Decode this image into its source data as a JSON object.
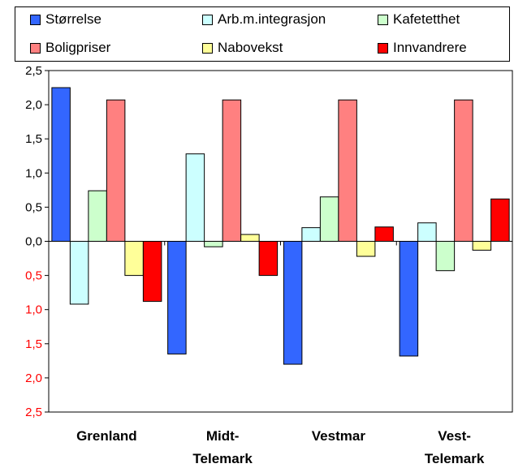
{
  "chart_data": {
    "type": "bar",
    "categories": [
      [
        "Grenland"
      ],
      [
        "Midt-",
        "Telemark"
      ],
      [
        "Vestmar"
      ],
      [
        "Vest-",
        "Telemark"
      ]
    ],
    "series": [
      {
        "name": "Størrelse",
        "color": "#3366ff",
        "values": [
          2.25,
          -1.65,
          -1.8,
          -1.68
        ]
      },
      {
        "name": "Arb.m.integrasjon",
        "color": "#ccffff",
        "values": [
          -0.92,
          1.28,
          0.2,
          0.27
        ]
      },
      {
        "name": "Kafetetthet",
        "color": "#ccffcc",
        "values": [
          0.74,
          -0.08,
          0.65,
          -0.43
        ]
      },
      {
        "name": "Boligpriser",
        "color": "#ff8080",
        "values": [
          2.07,
          2.07,
          2.07,
          2.07
        ]
      },
      {
        "name": "Nabovekst",
        "color": "#ffff99",
        "values": [
          -0.5,
          0.1,
          -0.22,
          -0.13
        ]
      },
      {
        "name": "Innvandrere",
        "color": "#ff0000",
        "values": [
          -0.88,
          -0.5,
          0.21,
          0.62
        ]
      }
    ],
    "ylim": [
      -2.5,
      2.5
    ],
    "yticks": [
      {
        "value": 2.5,
        "label": "2,5"
      },
      {
        "value": 2.0,
        "label": "2,0"
      },
      {
        "value": 1.5,
        "label": "1,5"
      },
      {
        "value": 1.0,
        "label": "1,0"
      },
      {
        "value": 0.5,
        "label": "0,5"
      },
      {
        "value": 0.0,
        "label": "0,0"
      },
      {
        "value": -0.5,
        "label": "0,5"
      },
      {
        "value": -1.0,
        "label": "1,0"
      },
      {
        "value": -1.5,
        "label": "1,5"
      },
      {
        "value": -2.0,
        "label": "2,0"
      },
      {
        "value": -2.5,
        "label": "2,5"
      }
    ],
    "negative_label_color": "#ff0000",
    "grid": false,
    "legend_position": "top"
  }
}
